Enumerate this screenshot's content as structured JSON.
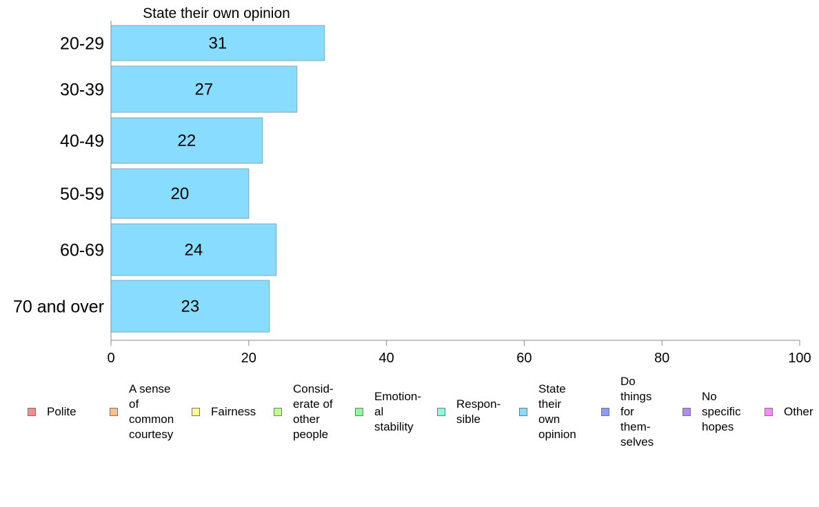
{
  "chart_data": {
    "type": "bar",
    "orientation": "horizontal",
    "title": "State their own opinion",
    "categories": [
      "20-29",
      "30-39",
      "40-49",
      "50-59",
      "60-69",
      "70 and over"
    ],
    "series": [
      {
        "name": "State their own opinion",
        "values": [
          31,
          27,
          22,
          20,
          24,
          23
        ],
        "color": "#87dcff"
      }
    ],
    "data_labels": [
      "31",
      "27",
      "22",
      "20",
      "24",
      "23"
    ],
    "xlim": [
      0,
      100
    ],
    "xticks": [
      0,
      20,
      40,
      60,
      80,
      100
    ],
    "grid": false,
    "legend_position": "bottom"
  },
  "legend": [
    {
      "label": "Polite",
      "color": "#ff8a8a"
    },
    {
      "label": "A sense\nof\ncommon\ncourtesy",
      "color": "#ffc08a"
    },
    {
      "label": "Fairness",
      "color": "#ffff8a"
    },
    {
      "label": "Consid-\nerate of\nother\npeople",
      "color": "#c0ff8a"
    },
    {
      "label": "Emotion-\nal\nstability",
      "color": "#8aff9a"
    },
    {
      "label": "Respon-\nsible",
      "color": "#8affdc"
    },
    {
      "label": "State\ntheir\nown\nopinion",
      "color": "#87dcff"
    },
    {
      "label": "Do\nthings\nfor\nthem-\nselves",
      "color": "#8a9aff"
    },
    {
      "label": "No\nspecific\nhopes",
      "color": "#b08aff"
    },
    {
      "label": "Other",
      "color": "#ff8aff"
    }
  ]
}
